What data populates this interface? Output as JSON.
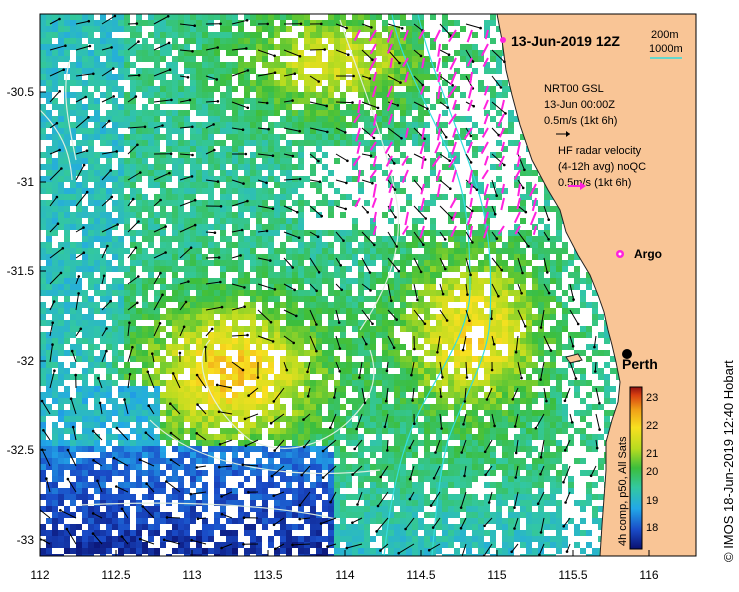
{
  "map": {
    "date_title": "13-Jun-2019 12Z",
    "contours": {
      "depth1": "200m",
      "depth2": "1000m"
    },
    "legend": {
      "gsl": "NRT00 GSL",
      "gsl_date": "13-Jun 00:00Z",
      "gsl_scale": "0.5m/s (1kt 6h)",
      "hf_title": "HF radar velocity",
      "hf_sub": "(4-12h avg) noQC",
      "hf_scale": "0.5m/s (1kt 6h)"
    },
    "argo_label": "Argo",
    "city_label": "Perth",
    "lat_ticks": [
      "-30.5",
      "-31",
      "-31.5",
      "-32",
      "-32.5",
      "-33"
    ],
    "lon_ticks": [
      "112",
      "112.5",
      "113",
      "113.5",
      "114",
      "114.5",
      "115",
      "115.5",
      "116"
    ],
    "colorbar": {
      "ticks": [
        "23",
        "22",
        "21",
        "20",
        "19",
        "18"
      ],
      "min": 17.6,
      "max": 23.4,
      "label": "4h comp, p50, All Sats"
    },
    "credit": "© IMOS 18-Jun-2019 12:40 Hobart",
    "colors": {
      "land": "#f9c596",
      "hf_vectors": "#ff22dd",
      "contour_200": "#33dddd",
      "contour_1000": "#e0f0e0"
    }
  }
}
